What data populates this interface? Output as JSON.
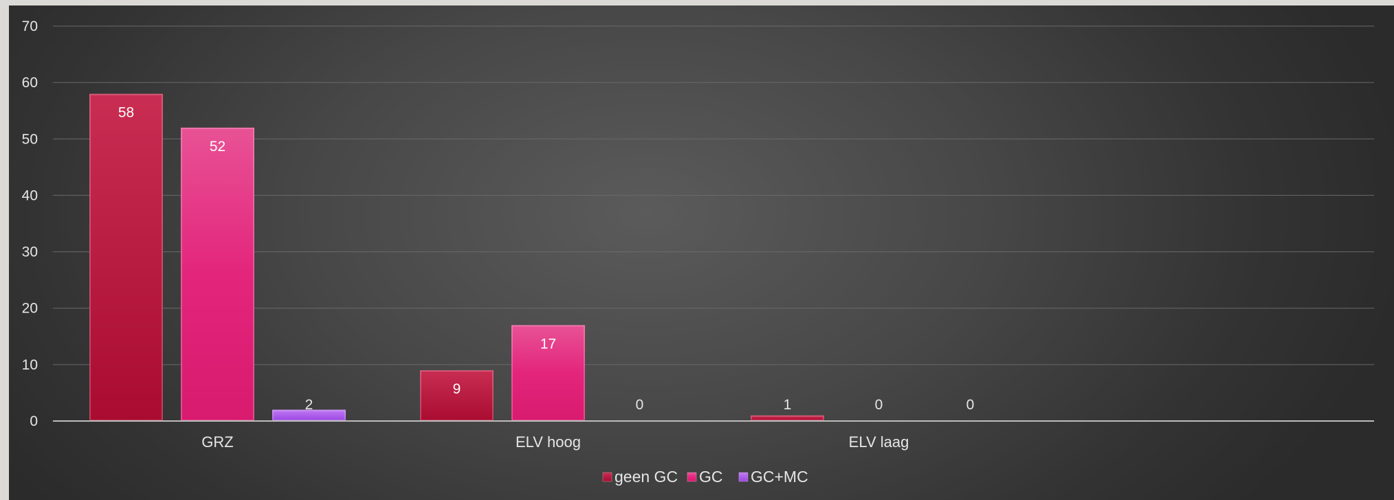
{
  "chart_data": {
    "type": "bar",
    "categories": [
      "GRZ",
      "ELV hoog",
      "ELV laag"
    ],
    "series": [
      {
        "name": "geen GC",
        "values": [
          58,
          9,
          1
        ],
        "color": "#c0173f"
      },
      {
        "name": "GC",
        "values": [
          52,
          17,
          0
        ],
        "color": "#e3257c"
      },
      {
        "name": "GC+MC",
        "values": [
          2,
          0,
          0
        ],
        "color": "#a957ee"
      }
    ],
    "ylim": [
      0,
      70
    ],
    "yticks": [
      0,
      10,
      20,
      30,
      40,
      50,
      60,
      70
    ],
    "grid": true,
    "legend_position": "bottom",
    "data_labels": true,
    "title": "",
    "xlabel": "",
    "ylabel": ""
  }
}
